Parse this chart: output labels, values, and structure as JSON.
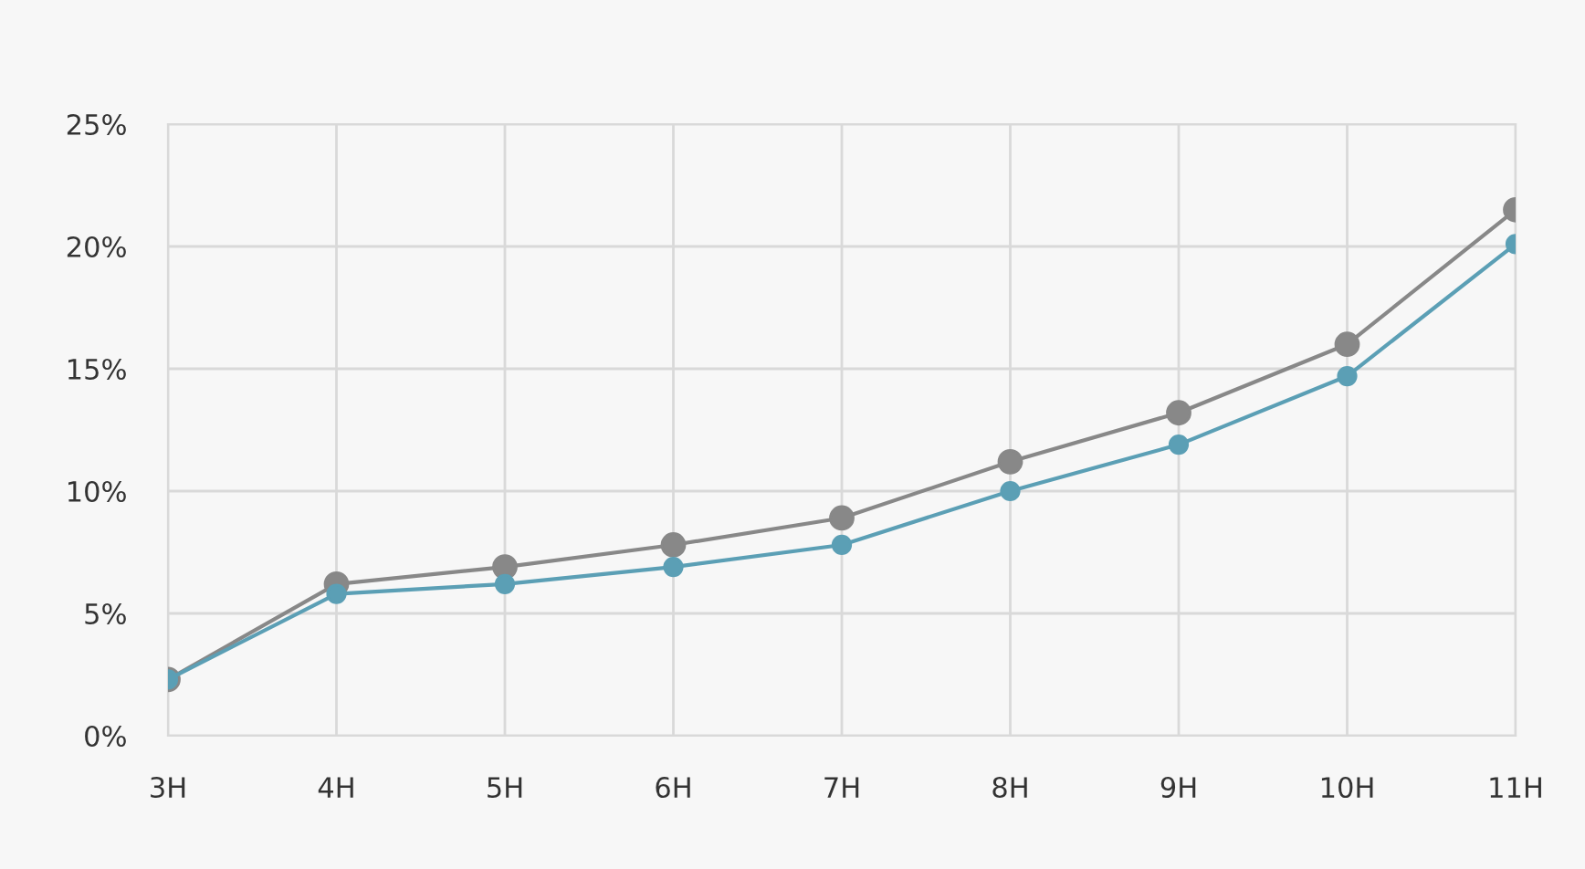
{
  "chart_data": {
    "type": "line",
    "categories": [
      "3H",
      "4H",
      "5H",
      "6H",
      "7H",
      "8H",
      "9H",
      "10H",
      "11H"
    ],
    "series": [
      {
        "color": "#888888",
        "values": [
          2.3,
          6.2,
          6.9,
          7.8,
          8.9,
          11.2,
          13.2,
          16.0,
          21.5
        ]
      },
      {
        "color": "#5b9fb5",
        "values": [
          2.3,
          5.8,
          6.2,
          6.9,
          7.8,
          10.0,
          11.9,
          14.7,
          20.1
        ]
      }
    ],
    "ylim": [
      0,
      25
    ],
    "yticks": [
      {
        "value": 0,
        "label": "0%"
      },
      {
        "value": 5,
        "label": "5%"
      },
      {
        "value": 10,
        "label": "10%"
      },
      {
        "value": 15,
        "label": "15%"
      },
      {
        "value": 20,
        "label": "20%"
      },
      {
        "value": 25,
        "label": "25%"
      }
    ],
    "grid": true,
    "marker": "circle",
    "line_style": "solid"
  }
}
